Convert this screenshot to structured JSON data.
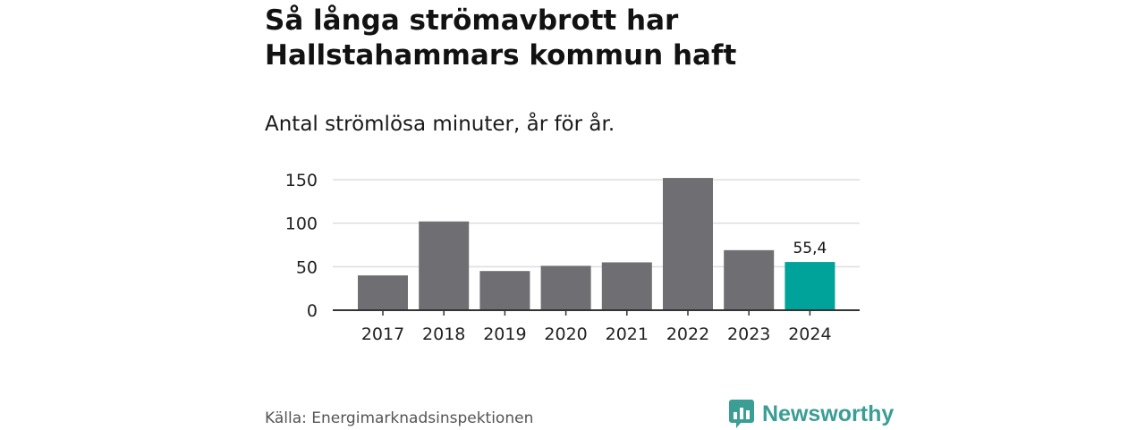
{
  "title_line1": "Så långa strömavbrott har",
  "title_line2": "Hallstahammars kommun haft",
  "subtitle": "Antal strömlösa minuter, år för år.",
  "source": "Källa: Energimarknadsinspektionen",
  "brand": {
    "name": "Newsworthy",
    "icon": "newsworthy-logo-icon",
    "color": "#3a9e95"
  },
  "colors": {
    "bar": "#6e6e73",
    "highlight": "#00a39a",
    "grid": "#dddddd",
    "axis": "#333333"
  },
  "chart_data": {
    "type": "bar",
    "categories": [
      "2017",
      "2018",
      "2019",
      "2020",
      "2021",
      "2022",
      "2023",
      "2024"
    ],
    "values": [
      40,
      102,
      45,
      51,
      55,
      152,
      69,
      55.4
    ],
    "highlight_index": 7,
    "data_labels": [
      {
        "index": 7,
        "text": "55,4"
      }
    ],
    "yticks": [
      0,
      50,
      100,
      150
    ],
    "ylim": [
      0,
      155
    ],
    "grid": true,
    "legend": "none",
    "xlabel": "",
    "ylabel": ""
  }
}
